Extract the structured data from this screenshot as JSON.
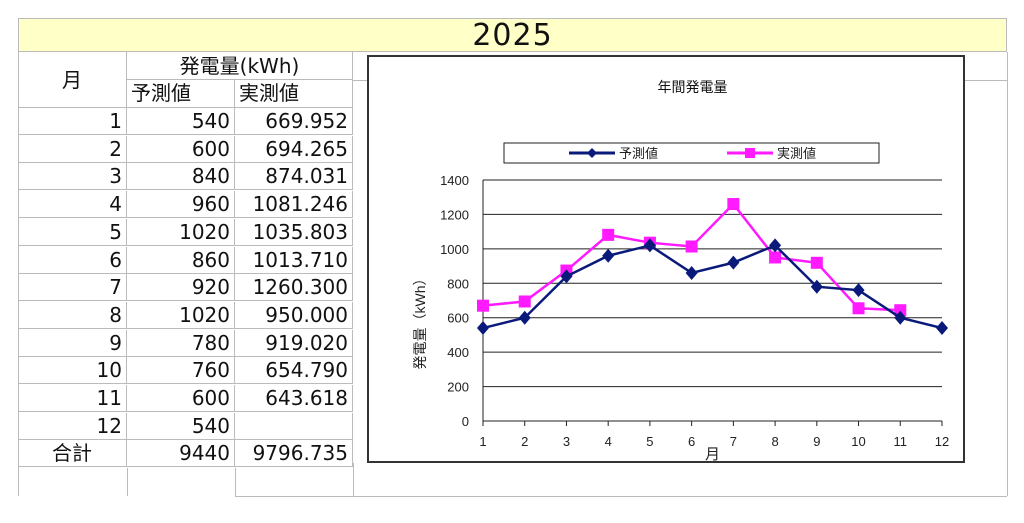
{
  "sheet": {
    "title": "2025",
    "header": {
      "month": "月",
      "group": "発電量(kWh)",
      "forecast": "予測値",
      "actual": "実測値"
    },
    "rows": [
      {
        "month": "1",
        "forecast": "540",
        "actual": "669.952"
      },
      {
        "month": "2",
        "forecast": "600",
        "actual": "694.265"
      },
      {
        "month": "3",
        "forecast": "840",
        "actual": "874.031"
      },
      {
        "month": "4",
        "forecast": "960",
        "actual": "1081.246"
      },
      {
        "month": "5",
        "forecast": "1020",
        "actual": "1035.803"
      },
      {
        "month": "6",
        "forecast": "860",
        "actual": "1013.710"
      },
      {
        "month": "7",
        "forecast": "920",
        "actual": "1260.300"
      },
      {
        "month": "8",
        "forecast": "1020",
        "actual": "950.000"
      },
      {
        "month": "9",
        "forecast": "780",
        "actual": "919.020"
      },
      {
        "month": "10",
        "forecast": "760",
        "actual": "654.790"
      },
      {
        "month": "11",
        "forecast": "600",
        "actual": "643.618"
      },
      {
        "month": "12",
        "forecast": "540",
        "actual": ""
      }
    ],
    "total": {
      "label": "合計",
      "forecast": "9440",
      "actual": "9796.735"
    }
  },
  "chart_data": {
    "type": "line",
    "title": "年間発電量",
    "xlabel": "月",
    "ylabel": "発電量（kWh）",
    "ylim": [
      0,
      1400
    ],
    "yticks": [
      "0",
      "200",
      "400",
      "600",
      "800",
      "1000",
      "1200",
      "1400"
    ],
    "categories": [
      "1",
      "2",
      "3",
      "4",
      "5",
      "6",
      "7",
      "8",
      "9",
      "10",
      "11",
      "12"
    ],
    "grid": true,
    "legend": "top",
    "series": [
      {
        "name": "予測値",
        "color": "#0a1a7a",
        "marker": "diamond",
        "values": [
          540,
          600,
          840,
          960,
          1020,
          860,
          920,
          1020,
          780,
          760,
          600,
          540
        ]
      },
      {
        "name": "実測値",
        "color": "#ff1aff",
        "marker": "square",
        "values": [
          669.952,
          694.265,
          874.031,
          1081.246,
          1035.803,
          1013.71,
          1260.3,
          950.0,
          919.02,
          654.79,
          643.618,
          null
        ]
      }
    ]
  }
}
